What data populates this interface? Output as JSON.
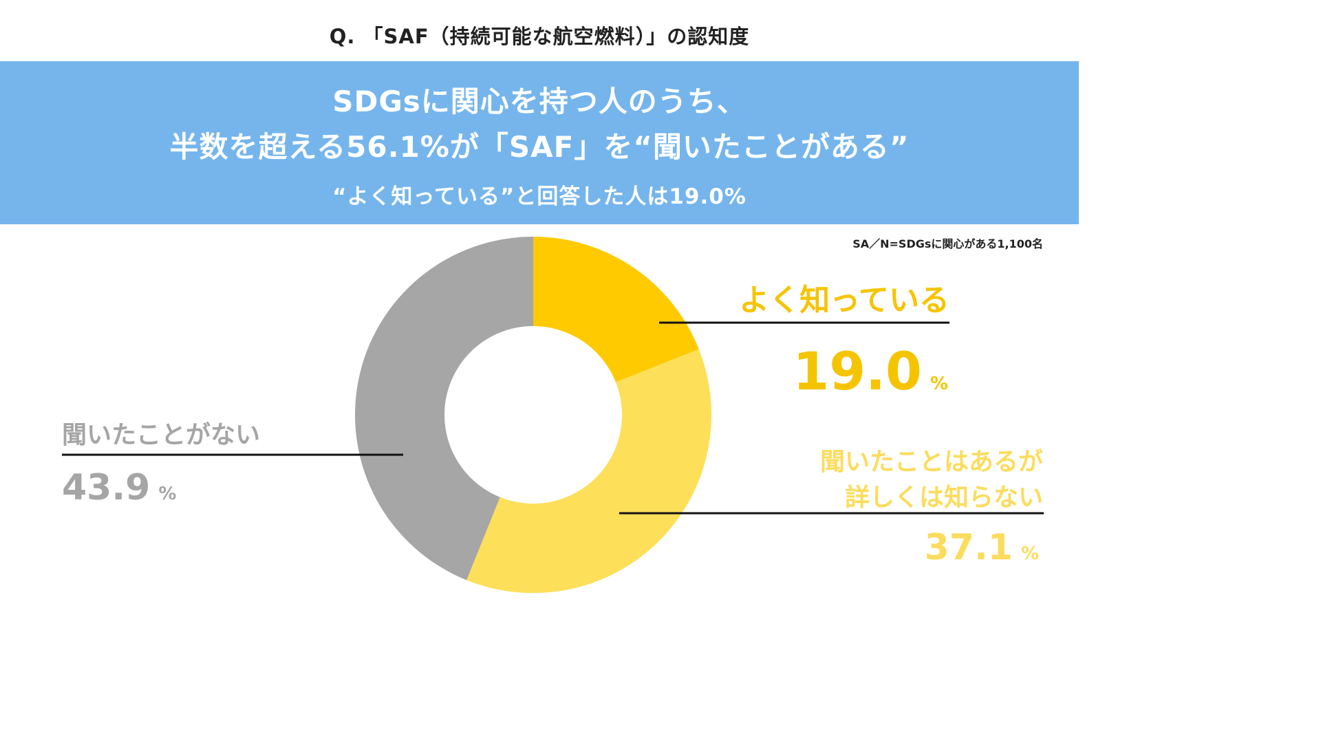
{
  "question": "Q. 「SAF（持続可能な航空燃料）」の認知度",
  "banner": {
    "line1": "SDGsに関心を持つ人のうち、",
    "line2": "半数を超える56.1%が「SAF」を“聞いたことがある”",
    "line3": "“よく知っている”と回答した人は19.0%"
  },
  "note": "SA／N=SDGsに関心がある1,100名",
  "colors": {
    "banner": "#75b5ec",
    "known": "#ffca00",
    "heard": "#fddf5a",
    "never": "#a6a6a6"
  },
  "chart_data": {
    "type": "pie",
    "donut": true,
    "unit": "%",
    "slices": [
      {
        "label": "よく知っている",
        "label_lines": [
          "よく知っている"
        ],
        "value": 19.0,
        "value_text": "19.0",
        "color": "#ffca00"
      },
      {
        "label": "聞いたことはあるが詳しくは知らない",
        "label_lines": [
          "聞いたことはあるが",
          "詳しくは知らない"
        ],
        "value": 37.1,
        "value_text": "37.1",
        "color": "#fddf5a"
      },
      {
        "label": "聞いたことがない",
        "label_lines": [
          "聞いたことがない"
        ],
        "value": 43.9,
        "value_text": "43.9",
        "color": "#a6a6a6"
      }
    ]
  }
}
